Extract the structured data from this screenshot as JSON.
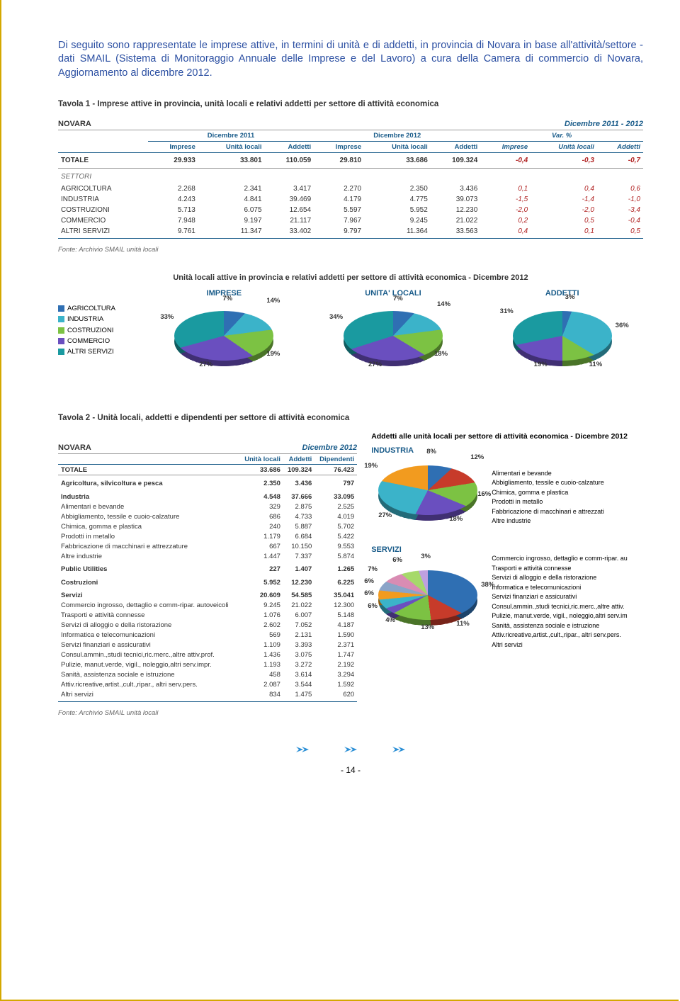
{
  "intro": "Di seguito sono rappresentate le imprese attive, in termini di unità e di addetti, in provincia di Novara in base all'attività/settore - dati SMAIL (Sistema di Monitoraggio Annuale delle Imprese e del Lavoro) a cura della Camera di commercio di Novara, Aggiornamento al dicembre 2012.",
  "tav1_title": "Tavola 1 - Imprese attive in provincia, unità locali e relativi addetti per settore di attività economica",
  "novara": "NOVARA",
  "period_range": "Dicembre 2011 - 2012",
  "colgroups": {
    "g1": "Dicembre 2011",
    "g2": "Dicembre 2012",
    "g3": "Var. %"
  },
  "cols": {
    "imp": "Imprese",
    "ul": "Unità locali",
    "add": "Addetti"
  },
  "tot_label": "TOTALE",
  "sett_label": "SETTORI",
  "tav1_total": {
    "imp1": "29.933",
    "ul1": "33.801",
    "add1": "110.059",
    "imp2": "29.810",
    "ul2": "33.686",
    "add2": "109.324",
    "vi": "-0,4",
    "vu": "-0,3",
    "va": "-0,7"
  },
  "tav1_rows": [
    {
      "n": "AGRICOLTURA",
      "imp1": "2.268",
      "ul1": "2.341",
      "add1": "3.417",
      "imp2": "2.270",
      "ul2": "2.350",
      "add2": "3.436",
      "vi": "0,1",
      "vu": "0,4",
      "va": "0,6"
    },
    {
      "n": "INDUSTRIA",
      "imp1": "4.243",
      "ul1": "4.841",
      "add1": "39.469",
      "imp2": "4.179",
      "ul2": "4.775",
      "add2": "39.073",
      "vi": "-1,5",
      "vu": "-1,4",
      "va": "-1,0"
    },
    {
      "n": "COSTRUZIONI",
      "imp1": "5.713",
      "ul1": "6.075",
      "add1": "12.654",
      "imp2": "5.597",
      "ul2": "5.952",
      "add2": "12.230",
      "vi": "-2,0",
      "vu": "-2,0",
      "va": "-3,4"
    },
    {
      "n": "COMMERCIO",
      "imp1": "7.948",
      "ul1": "9.197",
      "add1": "21.117",
      "imp2": "7.967",
      "ul2": "9.245",
      "add2": "21.022",
      "vi": "0,2",
      "vu": "0,5",
      "va": "-0,4"
    },
    {
      "n": "ALTRI SERVIZI",
      "imp1": "9.761",
      "ul1": "11.347",
      "add1": "33.402",
      "imp2": "9.797",
      "ul2": "11.364",
      "add2": "33.563",
      "vi": "0,4",
      "vu": "0,1",
      "va": "0,5"
    }
  ],
  "source": "Fonte: Archivio SMAIL unità locali",
  "pies_title": "Unità locali attive in provincia e relativi addetti per settore di attività economica - Dicembre 2012",
  "legend_items": [
    {
      "n": "AGRICOLTURA",
      "c": "#2f6fb3"
    },
    {
      "n": "INDUSTRIA",
      "c": "#3bb3c9"
    },
    {
      "n": "COSTRUZIONI",
      "c": "#7cc243"
    },
    {
      "n": "COMMERCIO",
      "c": "#6a4fbf"
    },
    {
      "n": "ALTRI SERVIZI",
      "c": "#1a9aa0"
    }
  ],
  "pie_titles": {
    "p1": "IMPRESE",
    "p2": "UNITA' LOCALI",
    "p3": "ADDETTI"
  },
  "pie_data": {
    "imprese": {
      "agr": 7,
      "ind": 14,
      "cos": 19,
      "com": 27,
      "alt": 33
    },
    "unitaloc": {
      "agr": 7,
      "ind": 14,
      "cos": 18,
      "com": 27,
      "alt": 34
    },
    "addetti": {
      "agr": 3,
      "ind": 36,
      "cos": 11,
      "com": 19,
      "alt": 31
    }
  },
  "pie_label_pos": {
    "imprese": {
      "agr": {
        "t": -8,
        "l": 78
      },
      "ind": {
        "t": -5,
        "l": 140
      },
      "cos": {
        "t": 70,
        "l": 140
      },
      "com": {
        "t": 85,
        "l": 45
      },
      "alt": {
        "t": 18,
        "l": -10
      }
    },
    "unitaloc": {
      "agr": {
        "t": -8,
        "l": 80
      },
      "ind": {
        "t": 0,
        "l": 142
      },
      "cos": {
        "t": 70,
        "l": 138
      },
      "com": {
        "t": 85,
        "l": 45
      },
      "alt": {
        "t": 18,
        "l": -10
      }
    },
    "addetti": {
      "agr": {
        "t": -10,
        "l": 84
      },
      "ind": {
        "t": 30,
        "l": 155
      },
      "cos": {
        "t": 85,
        "l": 118
      },
      "com": {
        "t": 85,
        "l": 40
      },
      "alt": {
        "t": 10,
        "l": -8
      }
    }
  },
  "tav2_title": "Tavola 2 - Unità locali, addetti e dipendenti per settore di attività economica",
  "period2": "Dicembre 2012",
  "t2_cols": {
    "ul": "Unità locali",
    "add": "Addetti",
    "dip": "Dipendenti"
  },
  "t2_total": {
    "ul": "33.686",
    "add": "109.324",
    "dip": "76.423"
  },
  "t2_rows": [
    {
      "sec": true,
      "n": "Agricoltura, silvicoltura e pesca",
      "ul": "2.350",
      "add": "3.436",
      "dip": "797"
    },
    {
      "sec": true,
      "n": "Industria",
      "ul": "4.548",
      "add": "37.666",
      "dip": "33.095"
    },
    {
      "n": "Alimentari e bevande",
      "ul": "329",
      "add": "2.875",
      "dip": "2.525"
    },
    {
      "n": "Abbigliamento, tessile e cuoio-calzature",
      "ul": "686",
      "add": "4.733",
      "dip": "4.019"
    },
    {
      "n": "Chimica, gomma e plastica",
      "ul": "240",
      "add": "5.887",
      "dip": "5.702"
    },
    {
      "n": "Prodotti in metallo",
      "ul": "1.179",
      "add": "6.684",
      "dip": "5.422"
    },
    {
      "n": "Fabbricazione di macchinari e attrezzature",
      "ul": "667",
      "add": "10.150",
      "dip": "9.553"
    },
    {
      "n": "Altre industrie",
      "ul": "1.447",
      "add": "7.337",
      "dip": "5.874"
    },
    {
      "sec": true,
      "n": "Public Utilities",
      "ul": "227",
      "add": "1.407",
      "dip": "1.265"
    },
    {
      "sec": true,
      "n": "Costruzioni",
      "ul": "5.952",
      "add": "12.230",
      "dip": "6.225"
    },
    {
      "sec": true,
      "n": "Servizi",
      "ul": "20.609",
      "add": "54.585",
      "dip": "35.041"
    },
    {
      "n": "Commercio ingrosso, dettaglio e comm-ripar. autoveicoli",
      "ul": "9.245",
      "add": "21.022",
      "dip": "12.300"
    },
    {
      "n": "Trasporti e attività connesse",
      "ul": "1.076",
      "add": "6.007",
      "dip": "5.148"
    },
    {
      "n": "Servizi di alloggio e della ristorazione",
      "ul": "2.602",
      "add": "7.052",
      "dip": "4.187"
    },
    {
      "n": "Informatica e telecomunicazioni",
      "ul": "569",
      "add": "2.131",
      "dip": "1.590"
    },
    {
      "n": "Servizi finanziari e assicurativi",
      "ul": "1.109",
      "add": "3.393",
      "dip": "2.371"
    },
    {
      "n": "Consul.ammin.,studi tecnici,ric.merc.,altre attiv.prof.",
      "ul": "1.436",
      "add": "3.075",
      "dip": "1.747"
    },
    {
      "n": "Pulizie, manut.verde, vigil., noleggio,altri serv.impr.",
      "ul": "1.193",
      "add": "3.272",
      "dip": "2.192"
    },
    {
      "n": "Sanità, assistenza sociale e istruzione",
      "ul": "458",
      "add": "3.614",
      "dip": "3.294"
    },
    {
      "n": "Attiv.ricreative,artist.,cult.,ripar., altri serv.pers.",
      "ul": "2.087",
      "add": "3.544",
      "dip": "1.592"
    },
    {
      "n": "Altri servizi",
      "ul": "834",
      "add": "1.475",
      "dip": "620"
    }
  ],
  "t2_pie_title": "Addetti alle unità locali per settore di attività economica - Dicembre 2012",
  "t2_industria_label": "INDUSTRIA",
  "t2_servizi_label": "SERVIZI",
  "t2_ind_legend": [
    {
      "n": "Alimentari e bevande",
      "c": "#2f6fb3"
    },
    {
      "n": "Abbigliamento, tessile e cuoio-calzature",
      "c": "#c73b2a"
    },
    {
      "n": "Chimica, gomma e plastica",
      "c": "#7cc243"
    },
    {
      "n": "Prodotti in metallo",
      "c": "#6a4fbf"
    },
    {
      "n": "Fabbricazione di macchinari e attrezzati",
      "c": "#3bb3c9"
    },
    {
      "n": "Altre industrie",
      "c": "#f29b1f"
    }
  ],
  "t2_ind_data": {
    "alim": 8,
    "abb": 12,
    "chim": 16,
    "met": 18,
    "fab": 27,
    "alt": 19
  },
  "t2_ind_lbl": {
    "alim": {
      "t": -10,
      "l": 78
    },
    "abb": {
      "t": -2,
      "l": 140
    },
    "chim": {
      "t": 50,
      "l": 150
    },
    "met": {
      "t": 85,
      "l": 110
    },
    "fab": {
      "t": 80,
      "l": 10
    },
    "alt": {
      "t": 10,
      "l": -10
    }
  },
  "t2_srv_legend": [
    {
      "n": "Commercio ingrosso, dettaglio e comm-ripar. au",
      "c": "#2f6fb3"
    },
    {
      "n": "Trasporti e attività connesse",
      "c": "#c73b2a"
    },
    {
      "n": "Servizi di alloggio e della ristorazione",
      "c": "#7cc243"
    },
    {
      "n": "Informatica e telecomunicazioni",
      "c": "#6a4fbf"
    },
    {
      "n": "Servizi finanziari e assicurativi",
      "c": "#3bb3c9"
    },
    {
      "n": "Consul.ammin.,studi tecnici,ric.merc.,altre attiv.",
      "c": "#f29b1f"
    },
    {
      "n": "Pulizie, manut.verde, vigil., noleggio,altri serv.im",
      "c": "#8aa4c8"
    },
    {
      "n": "Sanità, assistenza sociale e istruzione",
      "c": "#d98cb3"
    },
    {
      "n": "Attiv.ricreative,artist.,cult.,ripar., altri serv.pers.",
      "c": "#a6d96a"
    },
    {
      "n": "Altri servizi",
      "c": "#bfa0e0"
    }
  ],
  "t2_srv_data": {
    "com": 38,
    "tra": 11,
    "all": 13,
    "inf": 4,
    "fin": 6,
    "con": 6,
    "pul": 6,
    "san": 7,
    "ric": 6,
    "alt": 3
  },
  "t2_srv_lbl": {
    "com": {
      "t": 30,
      "l": 155
    },
    "tra": {
      "t": 85,
      "l": 120
    },
    "all": {
      "t": 90,
      "l": 70
    },
    "inf": {
      "t": 80,
      "l": 20
    },
    "fin": {
      "t": 60,
      "l": -5
    },
    "con": {
      "t": 42,
      "l": -10
    },
    "pul": {
      "t": 25,
      "l": -10
    },
    "san": {
      "t": 8,
      "l": -5
    },
    "ric": {
      "t": -5,
      "l": 30
    },
    "alt": {
      "t": -10,
      "l": 70
    }
  },
  "page_num": "- 14 -",
  "arrow_color": "#2b8fd6"
}
